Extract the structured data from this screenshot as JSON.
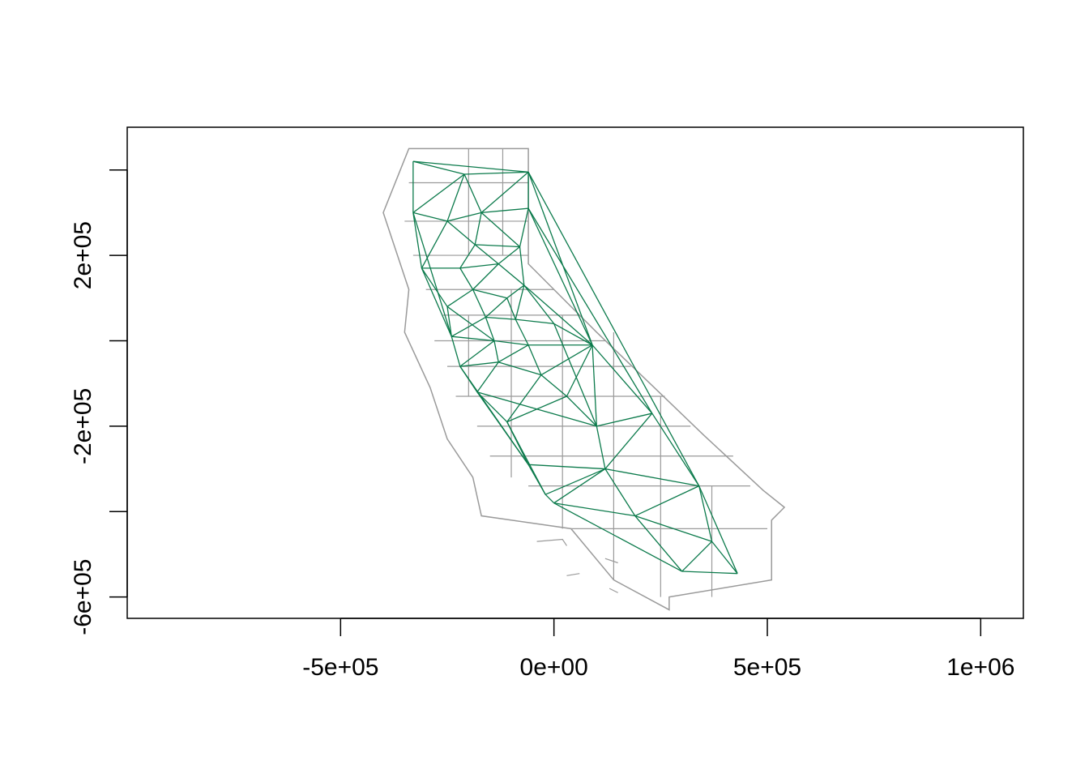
{
  "chart_data": {
    "type": "map-network",
    "title": "",
    "xlabel": "",
    "ylabel": "",
    "xlim": [
      -1000000,
      1100000
    ],
    "ylim": [
      -650000,
      500000
    ],
    "grid": false,
    "x_ticks": [
      {
        "value": -500000,
        "label": "-5e+05"
      },
      {
        "value": 0,
        "label": "0e+00"
      },
      {
        "value": 500000,
        "label": "5e+05"
      },
      {
        "value": 1000000,
        "label": "1e+06"
      }
    ],
    "y_ticks": [
      {
        "value": 400000,
        "label": ""
      },
      {
        "value": 200000,
        "label": "2e+05"
      },
      {
        "value": 0,
        "label": ""
      },
      {
        "value": -200000,
        "label": "-2e+05"
      },
      {
        "value": -400000,
        "label": ""
      },
      {
        "value": -600000,
        "label": "-6e+05"
      }
    ],
    "colors": {
      "outline": "#9a9a9a",
      "network": "#0b7a4b",
      "axis": "#000000"
    },
    "state_outline": [
      [
        -340000,
        450000
      ],
      [
        -60000,
        450000
      ],
      [
        -60000,
        180000
      ],
      [
        100000,
        20000
      ],
      [
        350000,
        -220000
      ],
      [
        490000,
        -350000
      ],
      [
        540000,
        -390000
      ],
      [
        510000,
        -420000
      ],
      [
        510000,
        -560000
      ],
      [
        270000,
        -600000
      ],
      [
        270000,
        -630000
      ],
      [
        140000,
        -560000
      ],
      [
        40000,
        -440000
      ],
      [
        -170000,
        -410000
      ],
      [
        -190000,
        -320000
      ],
      [
        -250000,
        -230000
      ],
      [
        -290000,
        -110000
      ],
      [
        -350000,
        20000
      ],
      [
        -340000,
        120000
      ],
      [
        -400000,
        300000
      ],
      [
        -360000,
        400000
      ],
      [
        -340000,
        450000
      ]
    ],
    "county_lines": [
      [
        [
          -340000,
          370000
        ],
        [
          -60000,
          370000
        ]
      ],
      [
        [
          -200000,
          450000
        ],
        [
          -200000,
          200000
        ]
      ],
      [
        [
          -350000,
          280000
        ],
        [
          -60000,
          280000
        ]
      ],
      [
        [
          -120000,
          450000
        ],
        [
          -120000,
          200000
        ]
      ],
      [
        [
          -330000,
          200000
        ],
        [
          -60000,
          200000
        ]
      ],
      [
        [
          -300000,
          120000
        ],
        [
          0,
          120000
        ]
      ],
      [
        [
          -260000,
          60000
        ],
        [
          60000,
          60000
        ]
      ],
      [
        [
          -280000,
          0
        ],
        [
          120000,
          0
        ]
      ],
      [
        [
          -250000,
          -60000
        ],
        [
          180000,
          -60000
        ]
      ],
      [
        [
          -230000,
          -130000
        ],
        [
          260000,
          -130000
        ]
      ],
      [
        [
          -180000,
          -200000
        ],
        [
          320000,
          -200000
        ]
      ],
      [
        [
          -150000,
          -270000
        ],
        [
          420000,
          -270000
        ]
      ],
      [
        [
          -60000,
          -340000
        ],
        [
          460000,
          -340000
        ]
      ],
      [
        [
          40000,
          -440000
        ],
        [
          500000,
          -440000
        ]
      ],
      [
        [
          140000,
          20000
        ],
        [
          140000,
          -560000
        ]
      ],
      [
        [
          20000,
          60000
        ],
        [
          20000,
          -440000
        ]
      ],
      [
        [
          -100000,
          120000
        ],
        [
          -100000,
          -320000
        ]
      ],
      [
        [
          250000,
          -130000
        ],
        [
          250000,
          -600000
        ]
      ],
      [
        [
          370000,
          -340000
        ],
        [
          370000,
          -600000
        ]
      ],
      [
        [
          -200000,
          60000
        ],
        [
          -200000,
          -130000
        ]
      ]
    ],
    "islands": [
      [
        [
          -40000,
          -470000
        ],
        [
          20000,
          -465000
        ],
        [
          30000,
          -480000
        ]
      ],
      [
        [
          30000,
          -550000
        ],
        [
          60000,
          -545000
        ]
      ],
      [
        [
          120000,
          -510000
        ],
        [
          150000,
          -520000
        ]
      ],
      [
        [
          130000,
          -580000
        ],
        [
          150000,
          -590000
        ]
      ]
    ],
    "nodes": [
      [
        -330000,
        420000
      ],
      [
        -60000,
        395000
      ],
      [
        -210000,
        390000
      ],
      [
        -330000,
        300000
      ],
      [
        -170000,
        300000
      ],
      [
        -60000,
        310000
      ],
      [
        -250000,
        280000
      ],
      [
        -185000,
        225000
      ],
      [
        -80000,
        220000
      ],
      [
        -310000,
        170000
      ],
      [
        -220000,
        170000
      ],
      [
        -130000,
        180000
      ],
      [
        -70000,
        130000
      ],
      [
        -190000,
        120000
      ],
      [
        -110000,
        100000
      ],
      [
        -250000,
        80000
      ],
      [
        -160000,
        55000
      ],
      [
        -90000,
        50000
      ],
      [
        0,
        40000
      ],
      [
        -240000,
        10000
      ],
      [
        -140000,
        0
      ],
      [
        -60000,
        -10000
      ],
      [
        90000,
        -10000
      ],
      [
        -220000,
        -60000
      ],
      [
        -130000,
        -50000
      ],
      [
        -30000,
        -80000
      ],
      [
        -180000,
        -120000
      ],
      [
        30000,
        -130000
      ],
      [
        -110000,
        -190000
      ],
      [
        100000,
        -200000
      ],
      [
        230000,
        -170000
      ],
      [
        -60000,
        -290000
      ],
      [
        120000,
        -300000
      ],
      [
        -20000,
        -360000
      ],
      [
        340000,
        -340000
      ],
      [
        190000,
        -410000
      ],
      [
        370000,
        -470000
      ],
      [
        300000,
        -540000
      ],
      [
        430000,
        -545000
      ],
      [
        0,
        -380000
      ]
    ],
    "edges": [
      [
        0,
        1
      ],
      [
        0,
        2
      ],
      [
        1,
        2
      ],
      [
        0,
        3
      ],
      [
        2,
        3
      ],
      [
        2,
        4
      ],
      [
        1,
        4
      ],
      [
        1,
        5
      ],
      [
        4,
        5
      ],
      [
        3,
        6
      ],
      [
        2,
        6
      ],
      [
        6,
        4
      ],
      [
        4,
        7
      ],
      [
        6,
        7
      ],
      [
        5,
        8
      ],
      [
        4,
        8
      ],
      [
        7,
        8
      ],
      [
        3,
        9
      ],
      [
        6,
        9
      ],
      [
        7,
        10
      ],
      [
        9,
        10
      ],
      [
        7,
        11
      ],
      [
        8,
        11
      ],
      [
        10,
        11
      ],
      [
        8,
        12
      ],
      [
        11,
        12
      ],
      [
        10,
        13
      ],
      [
        11,
        13
      ],
      [
        12,
        14
      ],
      [
        13,
        14
      ],
      [
        9,
        15
      ],
      [
        13,
        15
      ],
      [
        13,
        16
      ],
      [
        14,
        16
      ],
      [
        14,
        17
      ],
      [
        12,
        17
      ],
      [
        16,
        17
      ],
      [
        12,
        18
      ],
      [
        17,
        18
      ],
      [
        15,
        19
      ],
      [
        16,
        19
      ],
      [
        16,
        20
      ],
      [
        19,
        20
      ],
      [
        17,
        21
      ],
      [
        20,
        21
      ],
      [
        18,
        22
      ],
      [
        21,
        22
      ],
      [
        19,
        23
      ],
      [
        20,
        23
      ],
      [
        20,
        24
      ],
      [
        23,
        24
      ],
      [
        21,
        24
      ],
      [
        21,
        25
      ],
      [
        24,
        25
      ],
      [
        22,
        25
      ],
      [
        23,
        26
      ],
      [
        24,
        26
      ],
      [
        25,
        27
      ],
      [
        22,
        27
      ],
      [
        26,
        28
      ],
      [
        25,
        28
      ],
      [
        27,
        28
      ],
      [
        27,
        29
      ],
      [
        22,
        29
      ],
      [
        22,
        30
      ],
      [
        29,
        30
      ],
      [
        28,
        31
      ],
      [
        26,
        31
      ],
      [
        29,
        32
      ],
      [
        30,
        32
      ],
      [
        31,
        32
      ],
      [
        31,
        33
      ],
      [
        32,
        33
      ],
      [
        30,
        34
      ],
      [
        32,
        34
      ],
      [
        32,
        35
      ],
      [
        34,
        35
      ],
      [
        34,
        36
      ],
      [
        35,
        36
      ],
      [
        35,
        37
      ],
      [
        36,
        37
      ],
      [
        36,
        38
      ],
      [
        37,
        38
      ],
      [
        34,
        38
      ],
      [
        33,
        39
      ],
      [
        35,
        39
      ],
      [
        37,
        39
      ],
      [
        1,
        22
      ],
      [
        5,
        22
      ],
      [
        1,
        34
      ],
      [
        5,
        30
      ],
      [
        3,
        19
      ],
      [
        9,
        19
      ],
      [
        23,
        31
      ],
      [
        28,
        33
      ],
      [
        18,
        29
      ],
      [
        39,
        32
      ],
      [
        12,
        22
      ],
      [
        15,
        20
      ],
      [
        26,
        29
      ]
    ]
  }
}
